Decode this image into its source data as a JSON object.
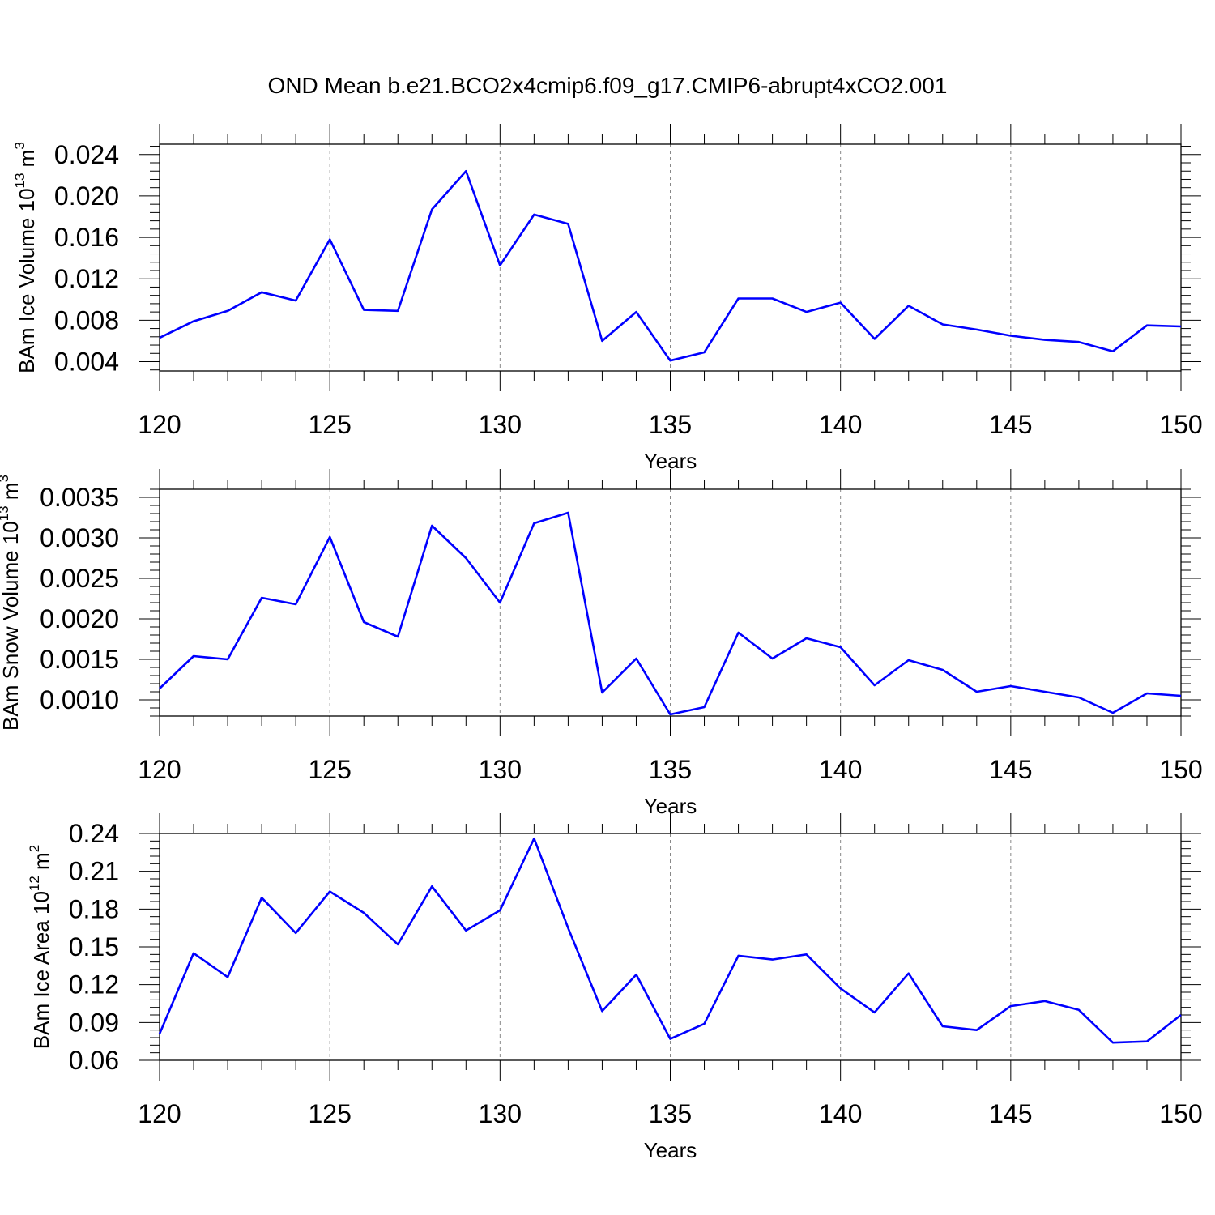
{
  "figure": {
    "title": "OND Mean b.e21.BCO2x4cmip6.f09_g17.CMIP6-abrupt4xCO2.001",
    "line_color": "#0000ff",
    "grid_color": "#888888"
  },
  "chart_data": [
    {
      "type": "line",
      "ylabel": "BAm Ice Volume",
      "ylabel_unit_base": "10",
      "ylabel_unit_exp": "13",
      "ylabel_unit_symbol": "m",
      "ylabel_unit_symbol_exp": "3",
      "xlabel": "Years",
      "xlim": [
        120,
        150
      ],
      "ylim": [
        0.0031,
        0.025
      ],
      "x_ticks": [
        120,
        125,
        130,
        135,
        140,
        145,
        150
      ],
      "x_tick_labels": [
        "120",
        "125",
        "130",
        "135",
        "140",
        "145",
        "150"
      ],
      "y_ticks": [
        0.004,
        0.008,
        0.012,
        0.016,
        0.02,
        0.024
      ],
      "y_tick_labels": [
        "0.004",
        "0.008",
        "0.012",
        "0.016",
        "0.020",
        "0.024"
      ],
      "x": [
        120,
        121,
        122,
        123,
        124,
        125,
        126,
        127,
        128,
        129,
        130,
        131,
        132,
        133,
        134,
        135,
        136,
        137,
        138,
        139,
        140,
        141,
        142,
        143,
        144,
        145,
        146,
        147,
        148,
        149,
        150
      ],
      "values": [
        0.0063,
        0.0079,
        0.0089,
        0.0107,
        0.0099,
        0.0158,
        0.009,
        0.0089,
        0.0187,
        0.0224,
        0.0133,
        0.0182,
        0.0173,
        0.006,
        0.0088,
        0.0041,
        0.0049,
        0.0101,
        0.0101,
        0.0088,
        0.0097,
        0.0062,
        0.0094,
        0.0076,
        0.0071,
        0.0065,
        0.0061,
        0.0059,
        0.005,
        0.0075,
        0.0074
      ]
    },
    {
      "type": "line",
      "ylabel": "BAm Snow Volume",
      "ylabel_unit_base": "10",
      "ylabel_unit_exp": "13",
      "ylabel_unit_symbol": "m",
      "ylabel_unit_symbol_exp": "3",
      "xlabel": "Years",
      "xlim": [
        120,
        150
      ],
      "ylim": [
        0.0008,
        0.0036
      ],
      "x_ticks": [
        120,
        125,
        130,
        135,
        140,
        145,
        150
      ],
      "x_tick_labels": [
        "120",
        "125",
        "130",
        "135",
        "140",
        "145",
        "150"
      ],
      "y_ticks": [
        0.001,
        0.0015,
        0.002,
        0.0025,
        0.003,
        0.0035
      ],
      "y_tick_labels": [
        "0.0010",
        "0.0015",
        "0.0020",
        "0.0025",
        "0.0030",
        "0.0035"
      ],
      "x": [
        120,
        121,
        122,
        123,
        124,
        125,
        126,
        127,
        128,
        129,
        130,
        131,
        132,
        133,
        134,
        135,
        136,
        137,
        138,
        139,
        140,
        141,
        142,
        143,
        144,
        145,
        146,
        147,
        148,
        149,
        150
      ],
      "values": [
        0.00114,
        0.00154,
        0.0015,
        0.00226,
        0.00218,
        0.00301,
        0.00196,
        0.00178,
        0.00315,
        0.00275,
        0.0022,
        0.00318,
        0.00331,
        0.00109,
        0.00151,
        0.00082,
        0.00091,
        0.00183,
        0.00151,
        0.00176,
        0.00165,
        0.00118,
        0.00149,
        0.00137,
        0.0011,
        0.00117,
        0.0011,
        0.00103,
        0.00084,
        0.00108,
        0.00105
      ]
    },
    {
      "type": "line",
      "ylabel": "BAm Ice Area",
      "ylabel_unit_base": "10",
      "ylabel_unit_exp": "12",
      "ylabel_unit_symbol": "m",
      "ylabel_unit_symbol_exp": "2",
      "xlabel": "Years",
      "xlim": [
        120,
        150
      ],
      "ylim": [
        0.06,
        0.24
      ],
      "x_ticks": [
        120,
        125,
        130,
        135,
        140,
        145,
        150
      ],
      "x_tick_labels": [
        "120",
        "125",
        "130",
        "135",
        "140",
        "145",
        "150"
      ],
      "y_ticks": [
        0.06,
        0.09,
        0.12,
        0.15,
        0.18,
        0.21,
        0.24
      ],
      "y_tick_labels": [
        "0.06",
        "0.09",
        "0.12",
        "0.15",
        "0.18",
        "0.21",
        "0.24"
      ],
      "x": [
        120,
        121,
        122,
        123,
        124,
        125,
        126,
        127,
        128,
        129,
        130,
        131,
        132,
        133,
        134,
        135,
        136,
        137,
        138,
        139,
        140,
        141,
        142,
        143,
        144,
        145,
        146,
        147,
        148,
        149,
        150
      ],
      "values": [
        0.081,
        0.145,
        0.126,
        0.189,
        0.161,
        0.194,
        0.177,
        0.152,
        0.198,
        0.163,
        0.179,
        0.236,
        0.165,
        0.099,
        0.128,
        0.077,
        0.089,
        0.143,
        0.14,
        0.144,
        0.117,
        0.098,
        0.129,
        0.087,
        0.084,
        0.103,
        0.107,
        0.1,
        0.074,
        0.075,
        0.096
      ]
    }
  ]
}
